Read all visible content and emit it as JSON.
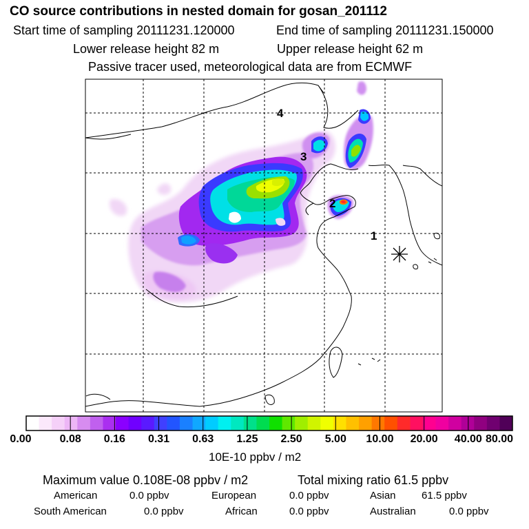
{
  "header": {
    "title": "CO  source contributions in nested domain for gosan_201112",
    "start_label": "Start time of sampling 20111231.120000",
    "end_label": "End time of sampling 20111231.150000",
    "lower_label": "Lower release height   82 m",
    "upper_label": "Upper release height   62 m",
    "note": "Passive tracer used, meteorological data are from ECMWF"
  },
  "map": {
    "station_marker": "asterisk-icon",
    "labels": [
      "1",
      "2",
      "3",
      "4"
    ],
    "plume_colors": {
      "light": "#f2d9f8",
      "lilac": "#d9a0f2",
      "violet": "#a020f0",
      "blue": "#3333ff",
      "cyan": "#00e5e5",
      "teal": "#00d090",
      "green": "#99e000",
      "yellow": "#e8ff00",
      "orange": "#ff8800"
    }
  },
  "colorbar": {
    "unit": "10E-10 ppbv / m2",
    "ticks": [
      "0.00",
      "0.08",
      "0.16",
      "0.31",
      "0.63",
      "1.25",
      "2.50",
      "5.00",
      "10.00",
      "20.00",
      "40.00",
      "80.00"
    ],
    "colors": [
      "#ffffff",
      "#fbe8fb",
      "#f5d0f8",
      "#edb6f6",
      "#d78cf0",
      "#c060ee",
      "#aa2ff0",
      "#8a00ff",
      "#7000ff",
      "#5a1aff",
      "#4040ff",
      "#2255ff",
      "#1a80ff",
      "#10a8ff",
      "#00ccff",
      "#00f0f0",
      "#00e8c0",
      "#00e08a",
      "#00dc50",
      "#10e000",
      "#60e800",
      "#a0ee00",
      "#d0f400",
      "#f0ff00",
      "#ffe000",
      "#ffc000",
      "#ffa000",
      "#ff7800",
      "#ff5000",
      "#ff2a2a",
      "#ff1060",
      "#ff0090",
      "#f000a0",
      "#d000a0",
      "#b00098",
      "#900080",
      "#700070",
      "#500058"
    ]
  },
  "summary": {
    "max_label": "Maximum value  0.108E-08 ppbv / m2",
    "total_label": "Total mixing ratio      61.5 ppbv",
    "regions": [
      {
        "name": "American",
        "value": "0.0 ppbv"
      },
      {
        "name": "European",
        "value": "0.0 ppbv"
      },
      {
        "name": "Asian",
        "value": "61.5 ppbv"
      },
      {
        "name": "South American",
        "value": "0.0 ppbv"
      },
      {
        "name": "African",
        "value": "0.0 ppbv"
      },
      {
        "name": "Australian",
        "value": "0.0 ppbv"
      }
    ]
  }
}
